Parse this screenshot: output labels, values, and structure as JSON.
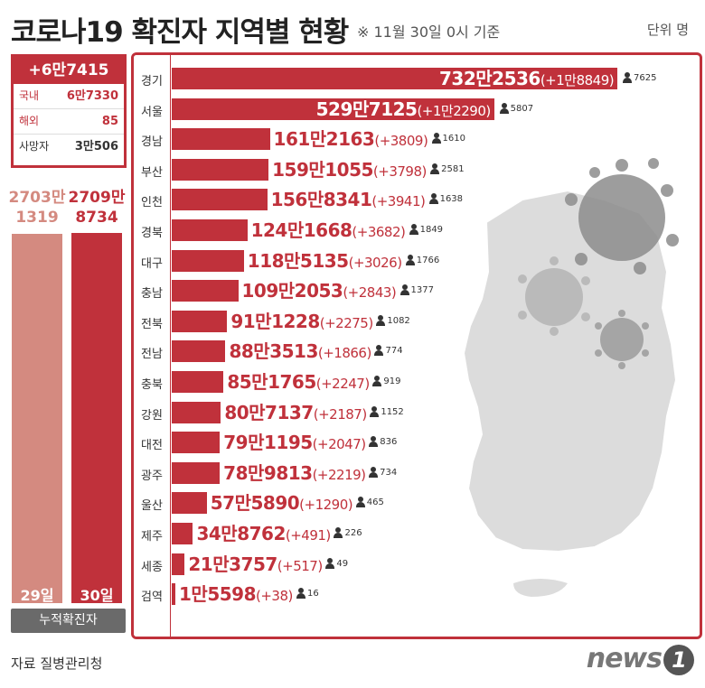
{
  "header": {
    "title": "코로나19 확진자 지역별 현황",
    "note": "※ 11월 30일 0시 기준",
    "unit": "단위 명"
  },
  "summary": {
    "total": "+6만7415",
    "rows": [
      {
        "label": "국내",
        "value": "6만7330"
      },
      {
        "label": "해외",
        "value": "85"
      },
      {
        "label": "사망자",
        "value": "3만506"
      }
    ]
  },
  "cumulative": {
    "caption": "누적확진자",
    "days": [
      {
        "day": "29일",
        "value_line1": "2703만",
        "value_line2": "1319",
        "value": 27031319,
        "color": "#d48a80"
      },
      {
        "day": "30일",
        "value_line1": "2709만",
        "value_line2": "8734",
        "value": 27098734,
        "color": "#c0313b"
      }
    ]
  },
  "chart_data": {
    "type": "bar",
    "title": "코로나19 확진자 지역별 현황",
    "orientation": "horizontal",
    "categories": [
      "경기",
      "서울",
      "경남",
      "부산",
      "인천",
      "경북",
      "대구",
      "충남",
      "전북",
      "전남",
      "충북",
      "강원",
      "대전",
      "광주",
      "울산",
      "제주",
      "세종",
      "검역"
    ],
    "labels": [
      "732만2536",
      "529만7125",
      "161만2163",
      "159만1055",
      "156만8341",
      "124만1668",
      "118만5135",
      "109만2053",
      "91만1228",
      "88만3513",
      "85만1765",
      "80만7137",
      "79만1195",
      "78만9813",
      "57만5890",
      "34만8762",
      "21만3757",
      "1만5598"
    ],
    "increase_labels": [
      "(+1만8849)",
      "(+1만2290)",
      "(+3809)",
      "(+3798)",
      "(+3941)",
      "(+3682)",
      "(+3026)",
      "(+2843)",
      "(+2275)",
      "(+1866)",
      "(+2247)",
      "(+2187)",
      "(+2047)",
      "(+2219)",
      "(+1290)",
      "(+491)",
      "(+517)",
      "(+38)"
    ],
    "series": [
      {
        "values": [
          7322536,
          5297125,
          1612163,
          1591055,
          1568341,
          1241668,
          1185135,
          1092053,
          911228,
          883513,
          851765,
          807137,
          791195,
          789813,
          575890,
          348762,
          213757,
          15598
        ]
      },
      {
        "values": [
          7625,
          5807,
          1610,
          2581,
          1638,
          1849,
          1766,
          1377,
          1082,
          774,
          919,
          1152,
          836,
          734,
          465,
          226,
          49,
          16
        ]
      }
    ]
  },
  "colors": {
    "accent": "#c0313b",
    "light": "#d48a80"
  },
  "footer": {
    "source": "자료 질병관리청",
    "logo": "news",
    "logo_mark": "1"
  }
}
